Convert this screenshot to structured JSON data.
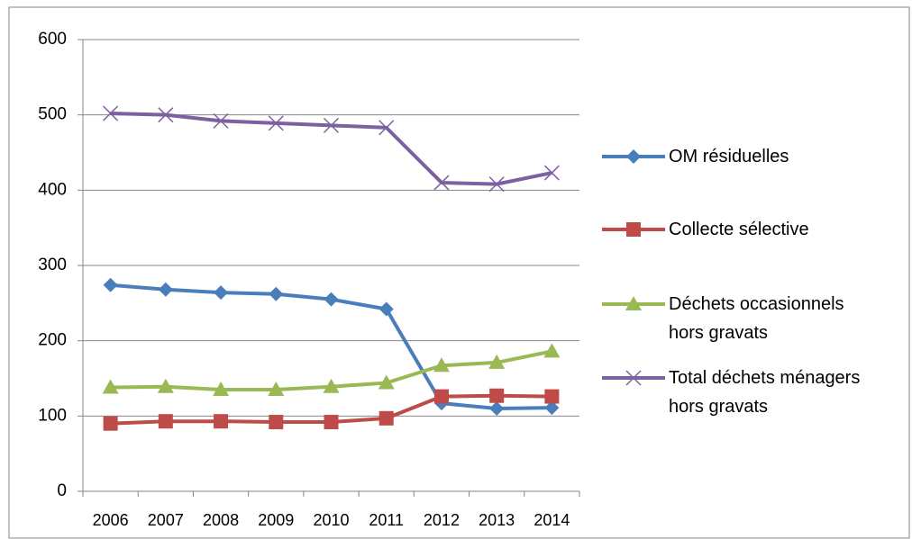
{
  "chart_data": {
    "type": "line",
    "categories": [
      "2006",
      "2007",
      "2008",
      "2009",
      "2010",
      "2011",
      "2012",
      "2013",
      "2014"
    ],
    "series": [
      {
        "name": "OM résiduelles",
        "color": "#4a7ebb",
        "marker": "diamond",
        "values": [
          274,
          268,
          264,
          262,
          255,
          242,
          117,
          110,
          111
        ]
      },
      {
        "name": "Collecte sélective",
        "color": "#be4b48",
        "marker": "square",
        "values": [
          90,
          93,
          93,
          92,
          92,
          97,
          126,
          127,
          126
        ]
      },
      {
        "name": "Déchets occasionnels hors gravats",
        "color": "#98b954",
        "marker": "triangle",
        "values": [
          138,
          139,
          135,
          135,
          139,
          144,
          167,
          171,
          186
        ]
      },
      {
        "name": "Total déchets ménagers hors gravats",
        "color": "#7d60a0",
        "marker": "x",
        "values": [
          502,
          500,
          492,
          489,
          486,
          483,
          410,
          408,
          423
        ]
      }
    ],
    "ylim": [
      0,
      600
    ],
    "yticks": [
      0,
      100,
      200,
      300,
      400,
      500,
      600
    ],
    "grid": true,
    "legend": "right"
  }
}
